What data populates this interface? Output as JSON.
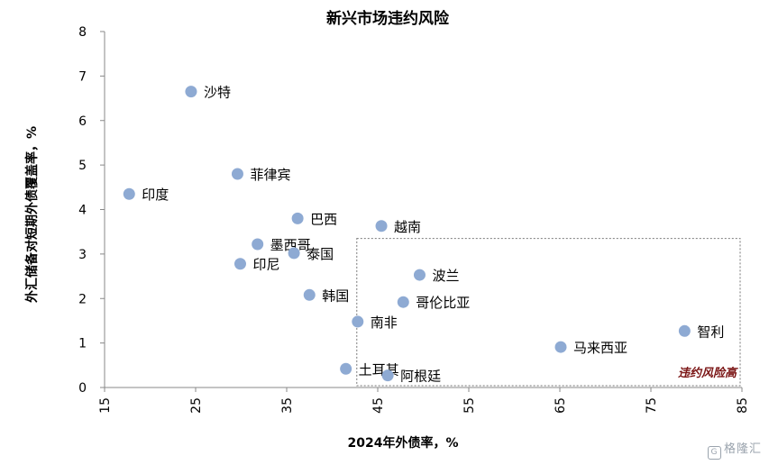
{
  "chart_data": {
    "type": "scatter",
    "title": "新兴市场违约风险",
    "xlabel": "2024年外债率，%",
    "ylabel": "外汇储备对短期外债覆盖率，%",
    "xlim": [
      15,
      85
    ],
    "ylim": [
      0,
      8
    ],
    "xticks": [
      15,
      25,
      35,
      45,
      55,
      65,
      75,
      85
    ],
    "yticks": [
      0,
      1,
      2,
      3,
      4,
      5,
      6,
      7,
      8
    ],
    "grid": false,
    "marker_color": "#8eaad3",
    "risk_region_label": "违约风险高",
    "risk_region": {
      "x": [
        42.8,
        85
      ],
      "y": [
        0,
        3.35
      ]
    },
    "points": [
      {
        "label": "沙特",
        "x": 24.5,
        "y": 6.65
      },
      {
        "label": "印度",
        "x": 17.7,
        "y": 4.35
      },
      {
        "label": "菲律宾",
        "x": 29.6,
        "y": 4.8
      },
      {
        "label": "巴西",
        "x": 36.2,
        "y": 3.8
      },
      {
        "label": "越南",
        "x": 45.4,
        "y": 3.63
      },
      {
        "label": "墨西哥",
        "x": 31.8,
        "y": 3.22
      },
      {
        "label": "泰国",
        "x": 35.8,
        "y": 3.02
      },
      {
        "label": "印尼",
        "x": 29.9,
        "y": 2.78
      },
      {
        "label": "波兰",
        "x": 49.6,
        "y": 2.53
      },
      {
        "label": "韩国",
        "x": 37.5,
        "y": 2.08
      },
      {
        "label": "哥伦比亚",
        "x": 47.8,
        "y": 1.92
      },
      {
        "label": "南非",
        "x": 42.8,
        "y": 1.48
      },
      {
        "label": "智利",
        "x": 78.7,
        "y": 1.27
      },
      {
        "label": "马来西亚",
        "x": 65.1,
        "y": 0.91
      },
      {
        "label": "土耳其",
        "x": 41.5,
        "y": 0.42
      },
      {
        "label": "阿根廷",
        "x": 46.1,
        "y": 0.27
      }
    ]
  },
  "watermark": "格隆汇",
  "watermark_icon": "G"
}
